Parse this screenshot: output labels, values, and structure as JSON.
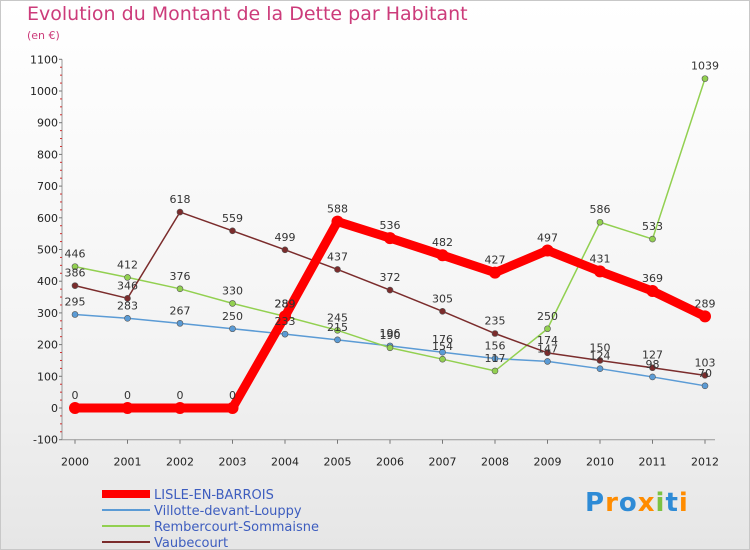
{
  "chart_data": {
    "type": "line",
    "title": "Evolution du Montant de la Dette par Habitant",
    "unit": "(en €)",
    "x": [
      "2000",
      "2001",
      "2002",
      "2003",
      "2004",
      "2005",
      "2006",
      "2007",
      "2008",
      "2009",
      "2010",
      "2011",
      "2012"
    ],
    "ylim": [
      -100,
      1100
    ],
    "yticks": [
      "-100",
      "0",
      "100",
      "200",
      "300",
      "400",
      "500",
      "600",
      "700",
      "800",
      "900",
      "1000",
      "1100"
    ],
    "grid": false,
    "legend_position": "bottom-left",
    "series": [
      {
        "name": "LISLE-EN-BARROIS",
        "color": "#ff0000",
        "values": [
          0,
          0,
          0,
          0,
          289,
          588,
          536,
          482,
          427,
          497,
          431,
          369,
          289
        ],
        "labels": [
          "0",
          "0",
          "0",
          "0",
          "289",
          "588",
          "536",
          "482",
          "427",
          "497",
          "431",
          "369",
          "289"
        ]
      },
      {
        "name": "Villotte-devant-Louppy",
        "color": "#5b9bd5",
        "values": [
          295,
          283,
          267,
          250,
          233,
          215,
          196,
          176,
          156,
          147,
          124,
          98,
          70
        ],
        "labels": [
          "295",
          "283",
          "267",
          "250",
          "233",
          "215",
          "196",
          "176",
          "156",
          "147",
          "124",
          "98",
          "70"
        ]
      },
      {
        "name": "Rembercourt-Sommaisne",
        "color": "#92d050",
        "values": [
          446,
          412,
          376,
          330,
          289,
          245,
          190,
          154,
          117,
          250,
          586,
          533,
          1039
        ],
        "labels": [
          "446",
          "412",
          "376",
          "330",
          "289",
          "245",
          "190",
          "154",
          "117",
          "250",
          "586",
          "533",
          "1039"
        ]
      },
      {
        "name": "Vaubecourt",
        "color": "#7b2c2c",
        "values": [
          386,
          346,
          618,
          559,
          499,
          437,
          372,
          305,
          235,
          174,
          150,
          127,
          103
        ],
        "labels": [
          "386",
          "346",
          "618",
          "559",
          "499",
          "437",
          "372",
          "305",
          "235",
          "174",
          "150",
          "127",
          "103"
        ]
      }
    ]
  },
  "logo": {
    "text": "Proxiti",
    "colors": [
      "#2e8bd6",
      "#ff8c00",
      "#2e8bd6",
      "#ff8c00",
      "#7cc242",
      "#2e8bd6",
      "#ff8c00"
    ]
  }
}
